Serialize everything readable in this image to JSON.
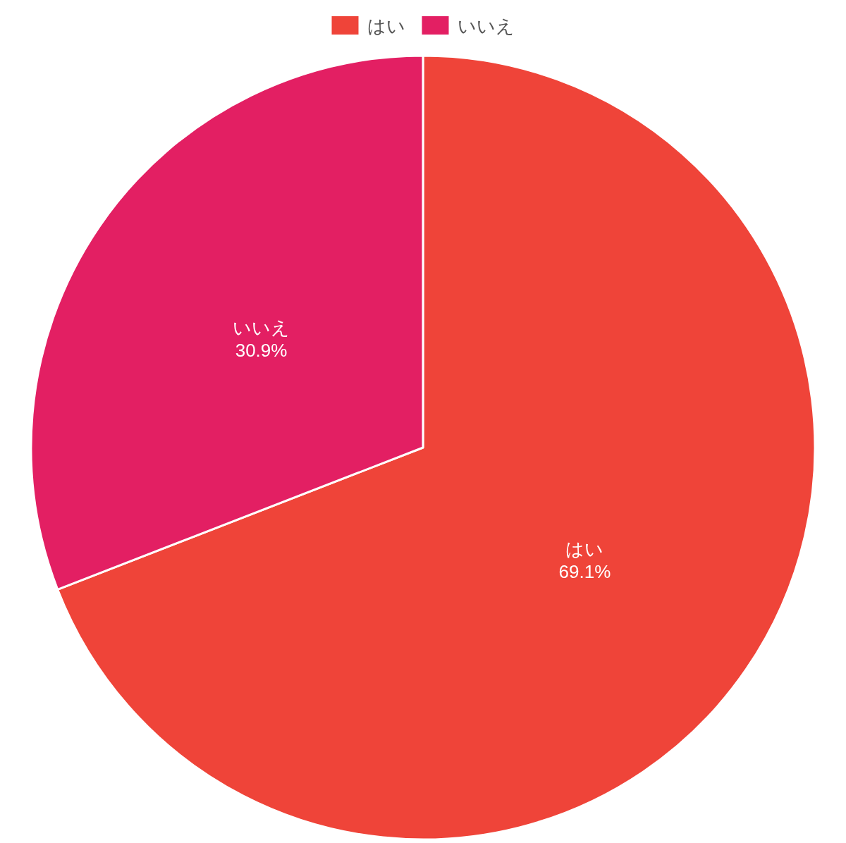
{
  "chart_data": {
    "type": "pie",
    "categories": [
      "はい",
      "いいえ"
    ],
    "values": [
      69.1,
      30.9
    ],
    "colors": [
      "#ef4439",
      "#e31f63"
    ],
    "value_labels": [
      "69.1%",
      "30.9%"
    ],
    "legend": "top"
  }
}
